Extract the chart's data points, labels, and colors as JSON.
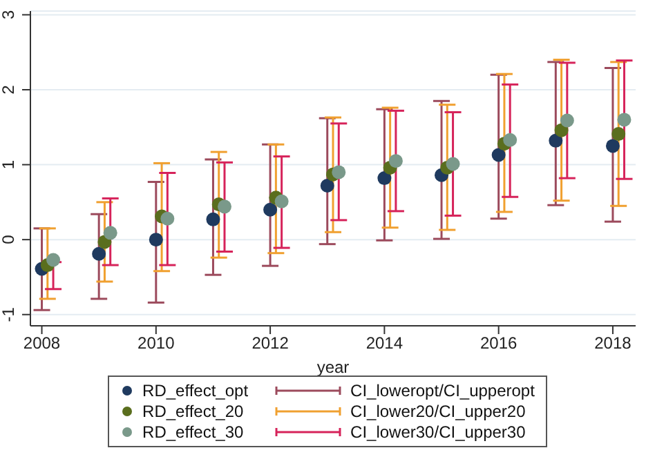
{
  "chart_data": {
    "type": "scatter",
    "xlabel": "year",
    "xlim": [
      2007.8,
      2018.4
    ],
    "xticks": [
      2008,
      2010,
      2012,
      2014,
      2016,
      2018
    ],
    "ylim": [
      -1.15,
      3.05
    ],
    "yticks": [
      -1,
      0,
      1,
      2,
      3
    ],
    "grid": "y",
    "legend": "bottom",
    "marker": "circle",
    "series": [
      {
        "name": "RD_effect_opt",
        "color": "#1f3a5f",
        "x": [
          2008,
          2009,
          2010,
          2011,
          2012,
          2013,
          2014,
          2015,
          2016,
          2017,
          2018
        ],
        "values": [
          -0.39,
          -0.19,
          0.0,
          0.27,
          0.4,
          0.72,
          0.82,
          0.86,
          1.13,
          1.32,
          1.25
        ],
        "errors": [
          [
            -0.94,
            0.15
          ],
          [
            -0.79,
            0.34
          ],
          [
            -0.84,
            0.77
          ],
          [
            -0.47,
            1.07
          ],
          [
            -0.35,
            1.27
          ],
          [
            -0.06,
            1.62
          ],
          [
            -0.01,
            1.74
          ],
          [
            0.01,
            1.85
          ],
          [
            0.28,
            2.2
          ],
          [
            0.46,
            2.37
          ],
          [
            0.24,
            2.29
          ]
        ]
      },
      {
        "name": "RD_effect_20",
        "color": "#5a6e1e",
        "x": [
          2008.1,
          2009.1,
          2010.1,
          2011.1,
          2012.1,
          2013.1,
          2014.1,
          2015.1,
          2016.1,
          2017.1,
          2018.1
        ],
        "values": [
          -0.34,
          -0.03,
          0.31,
          0.47,
          0.56,
          0.87,
          0.96,
          0.96,
          1.28,
          1.46,
          1.41
        ],
        "errors": [
          [
            -0.79,
            0.15
          ],
          [
            -0.56,
            0.5
          ],
          [
            -0.42,
            1.02
          ],
          [
            -0.24,
            1.17
          ],
          [
            -0.18,
            1.27
          ],
          [
            0.1,
            1.63
          ],
          [
            0.16,
            1.76
          ],
          [
            0.13,
            1.8
          ],
          [
            0.37,
            2.21
          ],
          [
            0.52,
            2.4
          ],
          [
            0.45,
            2.37
          ]
        ]
      },
      {
        "name": "RD_effect_30",
        "color": "#7a998a",
        "x": [
          2008.2,
          2009.2,
          2010.2,
          2011.2,
          2012.2,
          2013.2,
          2014.2,
          2015.2,
          2016.2,
          2017.2,
          2018.2
        ],
        "values": [
          -0.27,
          0.09,
          0.28,
          0.44,
          0.51,
          0.9,
          1.05,
          1.01,
          1.33,
          1.59,
          1.6
        ],
        "errors": [
          [
            -0.66,
            -0.3
          ],
          [
            -0.34,
            0.55
          ],
          [
            -0.34,
            0.89
          ],
          [
            -0.16,
            1.03
          ],
          [
            -0.11,
            1.11
          ],
          [
            0.26,
            1.55
          ],
          [
            0.38,
            1.72
          ],
          [
            0.32,
            1.7
          ],
          [
            0.57,
            2.07
          ],
          [
            0.82,
            2.36
          ],
          [
            0.81,
            2.39
          ]
        ]
      },
      {
        "name": "CI_loweropt/CI_upperopt",
        "color": "#9c4a5c"
      },
      {
        "name": "CI_lower20/CI_upper20",
        "color": "#f0a030"
      },
      {
        "name": "CI_lower30/CI_upper30",
        "color": "#d6235a"
      }
    ]
  }
}
